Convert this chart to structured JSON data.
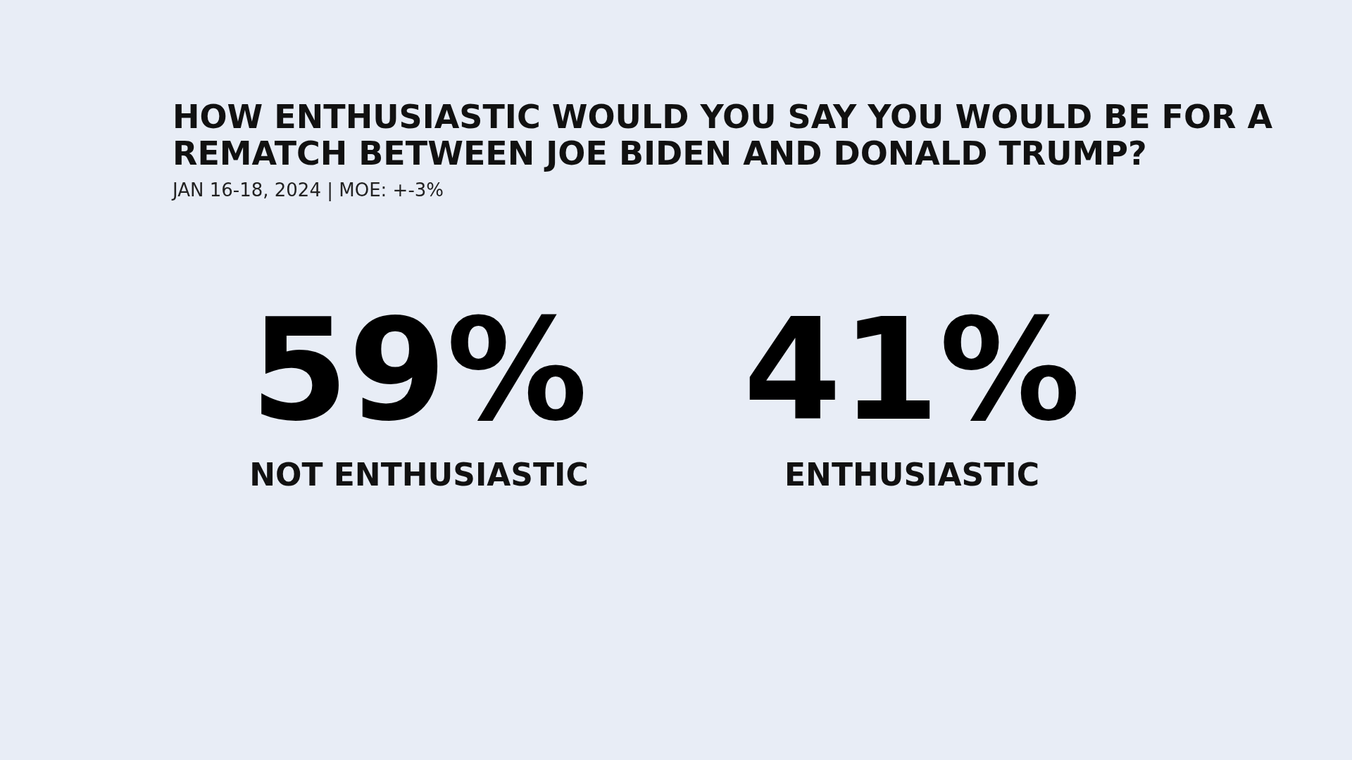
{
  "chart_data": {
    "type": "other",
    "title": "HOW ENTHUSIASTIC WOULD YOU SAY YOU WOULD BE FOR A REMATCH BETWEEN JOE BIDEN AND DONALD TRUMP?",
    "subtitle": "JAN 16-18, 2024 | MOE: +-3%",
    "categories": [
      "NOT ENTHUSIASTIC",
      "ENTHUSIASTIC"
    ],
    "values": [
      59,
      41
    ],
    "value_labels": [
      "59%",
      "41%"
    ]
  }
}
